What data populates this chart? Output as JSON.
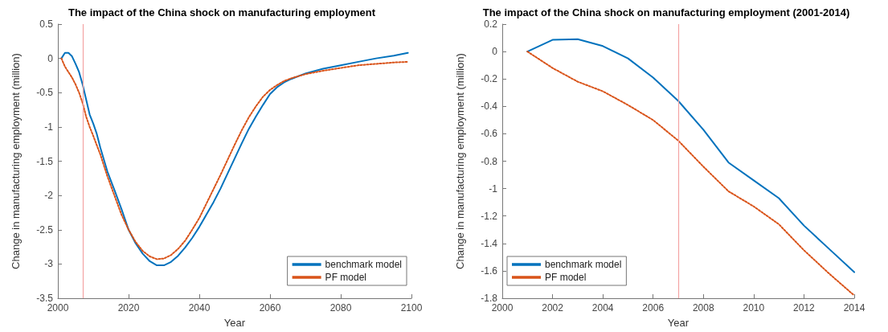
{
  "chart_data": [
    {
      "type": "line",
      "title": "The impact of the China shock on manufacturing employment",
      "xlabel": "Year",
      "ylabel": "Change in manufacturing employment (million)",
      "xlim": [
        2000,
        2100
      ],
      "xticks": [
        2000,
        2020,
        2040,
        2060,
        2080,
        2100
      ],
      "ylim": [
        -3.5,
        0.5
      ],
      "yticks": [
        -3.5,
        -3,
        -2.5,
        -2,
        -1.5,
        -1,
        -0.5,
        0,
        0.5
      ],
      "grid": false,
      "legend": "bottom right",
      "marker": "none",
      "ref_lines": [
        {
          "axis": "x",
          "value": 2007,
          "color": "#f4a3a3"
        }
      ],
      "series": [
        {
          "name": "benchmark model",
          "color": "#0072bd",
          "line_style": "solid",
          "x": [
            2001,
            2002,
            2003,
            2004,
            2005,
            2006,
            2007,
            2008,
            2009,
            2010,
            2011,
            2012,
            2014,
            2016,
            2018,
            2020,
            2022,
            2024,
            2026,
            2028,
            2030,
            2032,
            2034,
            2036,
            2038,
            2040,
            2042,
            2044,
            2046,
            2048,
            2050,
            2052,
            2054,
            2056,
            2058,
            2060,
            2062,
            2064,
            2066,
            2070,
            2075,
            2080,
            2085,
            2090,
            2095,
            2099
          ],
          "values": [
            0,
            0.08,
            0.08,
            0.03,
            -0.08,
            -0.2,
            -0.38,
            -0.6,
            -0.82,
            -0.95,
            -1.1,
            -1.3,
            -1.65,
            -1.92,
            -2.2,
            -2.5,
            -2.7,
            -2.85,
            -2.96,
            -3.02,
            -3.02,
            -2.97,
            -2.88,
            -2.76,
            -2.62,
            -2.46,
            -2.28,
            -2.1,
            -1.9,
            -1.68,
            -1.46,
            -1.24,
            -1.03,
            -0.85,
            -0.68,
            -0.52,
            -0.42,
            -0.35,
            -0.3,
            -0.22,
            -0.15,
            -0.1,
            -0.05,
            0.0,
            0.04,
            0.08
          ]
        },
        {
          "name": "PF model",
          "color": "#d95319",
          "line_style": "dotted",
          "x": [
            2001,
            2002,
            2003,
            2004,
            2005,
            2006,
            2007,
            2008,
            2009,
            2010,
            2012,
            2014,
            2016,
            2018,
            2020,
            2022,
            2024,
            2026,
            2028,
            2030,
            2032,
            2034,
            2036,
            2038,
            2040,
            2042,
            2044,
            2046,
            2048,
            2050,
            2052,
            2054,
            2056,
            2058,
            2060,
            2062,
            2064,
            2066,
            2070,
            2075,
            2080,
            2085,
            2090,
            2095,
            2099
          ],
          "values": [
            0,
            -0.12,
            -0.2,
            -0.28,
            -0.38,
            -0.5,
            -0.65,
            -0.85,
            -1.0,
            -1.13,
            -1.4,
            -1.72,
            -2.0,
            -2.28,
            -2.5,
            -2.68,
            -2.81,
            -2.89,
            -2.93,
            -2.92,
            -2.87,
            -2.78,
            -2.66,
            -2.5,
            -2.33,
            -2.12,
            -1.91,
            -1.7,
            -1.48,
            -1.26,
            -1.05,
            -0.86,
            -0.7,
            -0.56,
            -0.46,
            -0.39,
            -0.33,
            -0.29,
            -0.23,
            -0.18,
            -0.14,
            -0.1,
            -0.08,
            -0.06,
            -0.05
          ]
        }
      ]
    },
    {
      "type": "line",
      "title": "The impact of the China shock on manufacturing employment (2001-2014)",
      "xlabel": "Year",
      "ylabel": "Change in manufacturing employment (million)",
      "xlim": [
        2000,
        2014
      ],
      "xticks": [
        2000,
        2002,
        2004,
        2006,
        2008,
        2010,
        2012,
        2014
      ],
      "ylim": [
        -1.8,
        0.2
      ],
      "yticks": [
        -1.8,
        -1.6,
        -1.4,
        -1.2,
        -1,
        -0.8,
        -0.6,
        -0.4,
        -0.2,
        0,
        0.2
      ],
      "grid": false,
      "legend": "bottom left",
      "marker": "none",
      "ref_lines": [
        {
          "axis": "x",
          "value": 2007,
          "color": "#f4a3a3"
        }
      ],
      "series": [
        {
          "name": "benchmark model",
          "color": "#0072bd",
          "line_style": "solid",
          "x": [
            2001,
            2002,
            2003,
            2004,
            2005,
            2006,
            2007,
            2008,
            2009,
            2010,
            2011,
            2012,
            2013,
            2014
          ],
          "values": [
            0,
            0.085,
            0.09,
            0.04,
            -0.05,
            -0.19,
            -0.36,
            -0.57,
            -0.81,
            -0.94,
            -1.07,
            -1.27,
            -1.44,
            -1.61
          ]
        },
        {
          "name": "PF model",
          "color": "#d95319",
          "line_style": "dotted",
          "x": [
            2001,
            2002,
            2003,
            2004,
            2005,
            2006,
            2007,
            2008,
            2009,
            2010,
            2011,
            2012,
            2013,
            2014
          ],
          "values": [
            0,
            -0.12,
            -0.22,
            -0.29,
            -0.39,
            -0.5,
            -0.65,
            -0.84,
            -1.02,
            -1.13,
            -1.26,
            -1.45,
            -1.62,
            -1.78
          ]
        }
      ]
    }
  ]
}
